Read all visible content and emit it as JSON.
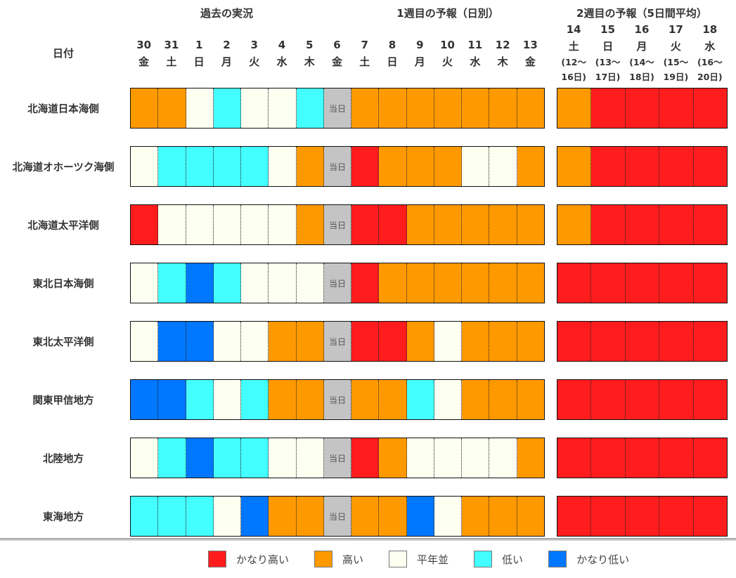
{
  "chart_data": {
    "type": "heatmap",
    "sections": [
      "過去の実況",
      "1週目の予報（日別）",
      "2週目の予報（5日間平均）"
    ],
    "date_header": "日付",
    "today_label": "当日",
    "days": [
      {
        "d": "30",
        "w": "金"
      },
      {
        "d": "31",
        "w": "土"
      },
      {
        "d": "1",
        "w": "日"
      },
      {
        "d": "2",
        "w": "月"
      },
      {
        "d": "3",
        "w": "火"
      },
      {
        "d": "4",
        "w": "水"
      },
      {
        "d": "5",
        "w": "木"
      },
      {
        "d": "6",
        "w": "金"
      },
      {
        "d": "7",
        "w": "土"
      },
      {
        "d": "8",
        "w": "日"
      },
      {
        "d": "9",
        "w": "月"
      },
      {
        "d": "10",
        "w": "火"
      },
      {
        "d": "11",
        "w": "水"
      },
      {
        "d": "12",
        "w": "木"
      },
      {
        "d": "13",
        "w": "金"
      }
    ],
    "week2": [
      {
        "d": "14",
        "w": "土",
        "r1": "(12～",
        "r2": "16日)"
      },
      {
        "d": "15",
        "w": "日",
        "r1": "(13～",
        "r2": "17日)"
      },
      {
        "d": "16",
        "w": "月",
        "r1": "(14～",
        "r2": "18日)"
      },
      {
        "d": "17",
        "w": "火",
        "r1": "(15～",
        "r2": "19日)"
      },
      {
        "d": "18",
        "w": "水",
        "r1": "(16～",
        "r2": "20日)"
      }
    ],
    "categories": {
      "R": "かなり高い",
      "O": "高い",
      "N": "平年並",
      "L": "低い",
      "B": "かなり低い",
      "T": "当日"
    },
    "colors": {
      "R": "#ff1c1c",
      "O": "#ff9900",
      "N": "#fdfff0",
      "L": "#44ffff",
      "B": "#0077ff",
      "T": "#c4c4c4"
    },
    "rows": [
      {
        "region": "北海道日本海側",
        "daily": [
          "O",
          "O",
          "N",
          "L",
          "N",
          "N",
          "L",
          "T",
          "O",
          "O",
          "O",
          "O",
          "O",
          "O",
          "O"
        ],
        "week2": [
          "O",
          "R",
          "R",
          "R",
          "R"
        ]
      },
      {
        "region": "北海道オホーツク海側",
        "daily": [
          "N",
          "L",
          "L",
          "L",
          "L",
          "N",
          "O",
          "T",
          "R",
          "O",
          "O",
          "O",
          "N",
          "N",
          "O"
        ],
        "week2": [
          "O",
          "R",
          "R",
          "R",
          "R"
        ]
      },
      {
        "region": "北海道太平洋側",
        "daily": [
          "R",
          "N",
          "N",
          "N",
          "N",
          "N",
          "O",
          "T",
          "R",
          "R",
          "O",
          "O",
          "O",
          "O",
          "O"
        ],
        "week2": [
          "O",
          "R",
          "R",
          "R",
          "R"
        ]
      },
      {
        "region": "東北日本海側",
        "daily": [
          "N",
          "L",
          "B",
          "L",
          "N",
          "N",
          "N",
          "T",
          "R",
          "O",
          "O",
          "O",
          "O",
          "O",
          "O"
        ],
        "week2": [
          "R",
          "R",
          "R",
          "R",
          "R"
        ]
      },
      {
        "region": "東北太平洋側",
        "daily": [
          "N",
          "B",
          "B",
          "N",
          "N",
          "O",
          "O",
          "T",
          "R",
          "R",
          "O",
          "N",
          "O",
          "O",
          "O"
        ],
        "week2": [
          "R",
          "R",
          "R",
          "R",
          "R"
        ]
      },
      {
        "region": "関東甲信地方",
        "daily": [
          "B",
          "B",
          "L",
          "N",
          "L",
          "O",
          "O",
          "T",
          "O",
          "O",
          "L",
          "N",
          "O",
          "O",
          "O"
        ],
        "week2": [
          "R",
          "R",
          "R",
          "R",
          "R"
        ]
      },
      {
        "region": "北陸地方",
        "daily": [
          "N",
          "L",
          "B",
          "L",
          "L",
          "N",
          "N",
          "T",
          "R",
          "O",
          "N",
          "N",
          "N",
          "N",
          "O"
        ],
        "week2": [
          "R",
          "R",
          "R",
          "R",
          "R"
        ]
      },
      {
        "region": "東海地方",
        "daily": [
          "L",
          "L",
          "L",
          "N",
          "B",
          "O",
          "O",
          "T",
          "O",
          "O",
          "B",
          "N",
          "O",
          "O",
          "O"
        ],
        "week2": [
          "R",
          "R",
          "R",
          "R",
          "R"
        ]
      }
    ],
    "legend": [
      "R",
      "O",
      "N",
      "L",
      "B"
    ]
  }
}
